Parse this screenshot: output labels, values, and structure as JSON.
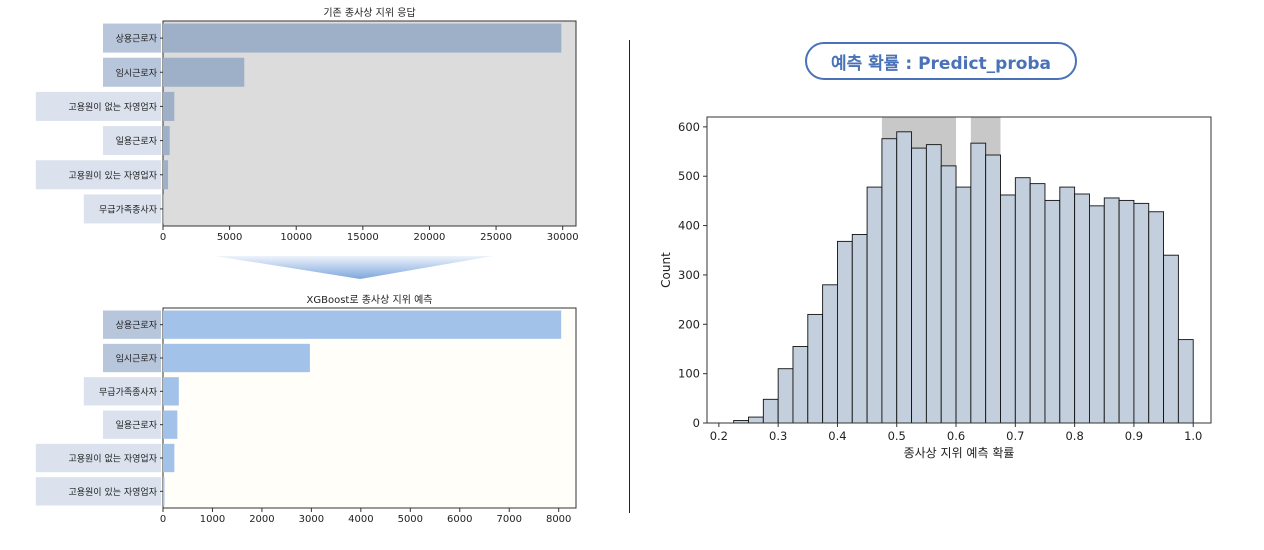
{
  "badge": {
    "label": "예측 확률 : Predict_proba"
  },
  "colors": {
    "top_panel_bg": "#dcdcdc",
    "top_bar": "#9eb0c8",
    "bottom_panel_bg": "#fffef8",
    "bottom_bar": "#a3c2ea",
    "hist_fill": "#c3cfdc",
    "hist_highlight": "#c8c8c8",
    "accent": "#4a72b8"
  },
  "chart_data": [
    {
      "type": "bar",
      "orientation": "horizontal",
      "title": "기존 종사상 지위 응답",
      "categories": [
        "상용근로자",
        "임시근로자",
        "고용원이 없는 자영업자",
        "일용근로자",
        "고용원이 있는 자영업자",
        "무급가족종사자"
      ],
      "values": [
        29900,
        6100,
        850,
        500,
        380,
        60
      ],
      "xlim": [
        0,
        31000
      ],
      "xticks": [
        0,
        5000,
        10000,
        15000,
        20000,
        25000,
        30000
      ]
    },
    {
      "type": "bar",
      "orientation": "horizontal",
      "title": "XGBoost로 종사상 지위 예측",
      "categories": [
        "상용근로자",
        "임시근로자",
        "무급가족종사자",
        "일용근로자",
        "고용원이 없는 자영업자",
        "고용원이 있는 자영업자"
      ],
      "values": [
        8050,
        2970,
        320,
        290,
        230,
        30
      ],
      "xlim": [
        0,
        8350
      ],
      "xticks": [
        0,
        1000,
        2000,
        3000,
        4000,
        5000,
        6000,
        7000,
        8000
      ]
    },
    {
      "type": "bar",
      "subtype": "histogram",
      "xlabel": "종사상 지위 예측 확률",
      "ylabel": "Count",
      "xlim": [
        0.18,
        1.03
      ],
      "ylim": [
        0,
        620
      ],
      "xticks": [
        0.2,
        0.3,
        0.4,
        0.5,
        0.6,
        0.7,
        0.8,
        0.9,
        1.0
      ],
      "yticks": [
        0,
        100,
        200,
        300,
        400,
        500,
        600
      ],
      "bin_width": 0.025,
      "bin_starts": [
        0.225,
        0.25,
        0.275,
        0.3,
        0.325,
        0.35,
        0.375,
        0.4,
        0.425,
        0.45,
        0.475,
        0.5,
        0.525,
        0.55,
        0.575,
        0.6,
        0.625,
        0.65,
        0.675,
        0.7,
        0.725,
        0.75,
        0.775,
        0.8,
        0.825,
        0.85,
        0.875,
        0.9,
        0.925,
        0.95,
        0.975
      ],
      "counts": [
        5,
        12,
        48,
        110,
        155,
        220,
        280,
        368,
        382,
        478,
        576,
        590,
        557,
        564,
        521,
        478,
        567,
        543,
        462,
        497,
        485,
        451,
        478,
        464,
        440,
        456,
        451,
        445,
        428,
        340,
        169
      ],
      "highlight_bins": [
        [
          0.475,
          0.6
        ],
        [
          0.625,
          0.675
        ]
      ]
    }
  ]
}
